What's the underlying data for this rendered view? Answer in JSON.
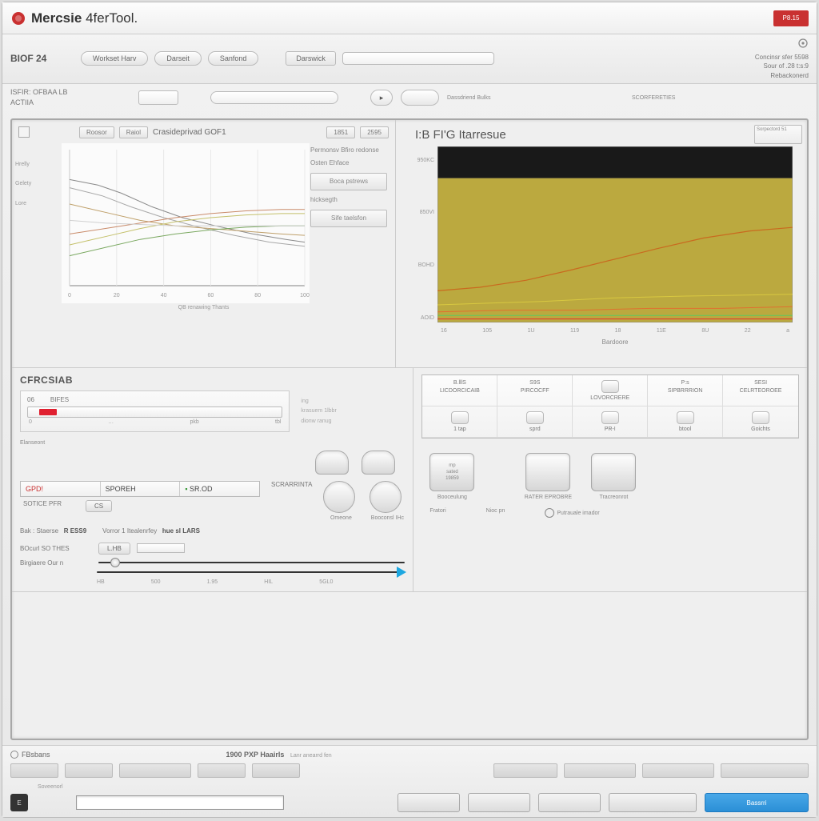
{
  "titlebar": {
    "app_name_bold": "Mercsie",
    "app_name_thin": "4ferTool.",
    "red_button": "P8.15",
    "logo_color": "#c93030"
  },
  "toolbar": {
    "section": "BIOF 24",
    "buttons": [
      "Workset Harv",
      "Darseit",
      "Sanfond"
    ],
    "dropdown": "Darswick",
    "right_lines": [
      "Concinsr sfer 5598",
      "Sour of .28 t:s:9",
      "Rebackonerd"
    ]
  },
  "toolbar2": {
    "left_label_1": "ISFIR: OFBAA LB",
    "left_label_2": "ACTIIA",
    "center_caption": "SCORFERETIES",
    "icon_btn_label": "Dassdriend Bulks"
  },
  "left_chart": {
    "type": "line",
    "header_btns": [
      "Roosor",
      "Raiol"
    ],
    "header_title": "Crasideprivad GOF1",
    "header_right": [
      "1851",
      "2595"
    ],
    "y_labels": [
      "Hrelly",
      "Gelety",
      "Lore"
    ],
    "x_ticks": [
      "0",
      "20",
      "40",
      "60",
      "80",
      "100"
    ],
    "xlim": [
      0,
      100
    ],
    "ylim": [
      0,
      100
    ],
    "background": "#fbfbfb",
    "axis_color": "#999999",
    "grid_color": "#e8e8e8",
    "caption": "QB renawing Thants",
    "legend": {
      "items": [
        "Permonsv Bfiro redonse",
        "Osten Ehface",
        "Boca pstrews",
        "hicksegth"
      ],
      "button": "Sife taelsfon"
    },
    "series": [
      {
        "color": "#8a8a8a",
        "width": 1,
        "points": [
          [
            0,
            78
          ],
          [
            12,
            74
          ],
          [
            22,
            68
          ],
          [
            35,
            58
          ],
          [
            48,
            50
          ],
          [
            62,
            44
          ],
          [
            78,
            38
          ],
          [
            92,
            34
          ],
          [
            100,
            32
          ]
        ]
      },
      {
        "color": "#a8a8a8",
        "width": 1,
        "points": [
          [
            0,
            72
          ],
          [
            14,
            66
          ],
          [
            26,
            58
          ],
          [
            40,
            50
          ],
          [
            55,
            43
          ],
          [
            70,
            37
          ],
          [
            85,
            32
          ],
          [
            100,
            29
          ]
        ]
      },
      {
        "color": "#bfa06a",
        "width": 1,
        "points": [
          [
            0,
            60
          ],
          [
            15,
            54
          ],
          [
            30,
            48
          ],
          [
            45,
            44
          ],
          [
            60,
            42
          ],
          [
            75,
            40
          ],
          [
            90,
            38
          ],
          [
            100,
            37
          ]
        ]
      },
      {
        "color": "#c98b6a",
        "width": 1,
        "points": [
          [
            0,
            38
          ],
          [
            15,
            42
          ],
          [
            30,
            46
          ],
          [
            45,
            50
          ],
          [
            60,
            53
          ],
          [
            75,
            55
          ],
          [
            90,
            56
          ],
          [
            100,
            56
          ]
        ]
      },
      {
        "color": "#c4c06a",
        "width": 1,
        "points": [
          [
            0,
            30
          ],
          [
            15,
            36
          ],
          [
            30,
            42
          ],
          [
            45,
            47
          ],
          [
            60,
            50
          ],
          [
            75,
            52
          ],
          [
            90,
            53
          ],
          [
            100,
            53
          ]
        ]
      },
      {
        "color": "#7aa860",
        "width": 1,
        "points": [
          [
            0,
            22
          ],
          [
            15,
            28
          ],
          [
            30,
            34
          ],
          [
            45,
            38
          ],
          [
            60,
            41
          ],
          [
            75,
            43
          ],
          [
            90,
            44
          ],
          [
            100,
            44
          ]
        ]
      },
      {
        "color": "#d0d0d0",
        "width": 1,
        "points": [
          [
            0,
            48
          ],
          [
            15,
            46
          ],
          [
            30,
            45
          ],
          [
            45,
            44
          ],
          [
            60,
            44
          ],
          [
            75,
            44
          ],
          [
            90,
            44
          ],
          [
            100,
            44
          ]
        ]
      }
    ]
  },
  "right_chart": {
    "type": "area",
    "title": "I:B FI'G Itarresue",
    "corner_box": "Sorpectord 51",
    "y_labels": [
      "950KC",
      "850VI",
      "BOHD",
      "AOID"
    ],
    "x_ticks": [
      "16",
      "105",
      "1U",
      "119",
      "18",
      "11E",
      "8U",
      "22",
      "a"
    ],
    "x_label": "Bardoore",
    "background_top": "#191919",
    "area_color": "#bba93f",
    "ylim": [
      0,
      100
    ],
    "top_bar_height": 18,
    "series": [
      {
        "color": "#c96a1f",
        "width": 1.2,
        "points": [
          [
            0,
            18
          ],
          [
            12,
            20
          ],
          [
            25,
            24
          ],
          [
            38,
            30
          ],
          [
            50,
            36
          ],
          [
            62,
            42
          ],
          [
            75,
            48
          ],
          [
            88,
            52
          ],
          [
            100,
            54
          ]
        ]
      },
      {
        "color": "#d8c840",
        "width": 1,
        "points": [
          [
            0,
            10
          ],
          [
            15,
            11
          ],
          [
            30,
            12
          ],
          [
            50,
            14
          ],
          [
            70,
            15
          ],
          [
            100,
            16
          ]
        ]
      },
      {
        "color": "#e07030",
        "width": 1,
        "points": [
          [
            0,
            6
          ],
          [
            20,
            7
          ],
          [
            40,
            7
          ],
          [
            60,
            8
          ],
          [
            80,
            8
          ],
          [
            100,
            9
          ]
        ]
      },
      {
        "color": "#60c860",
        "width": 1,
        "points": [
          [
            0,
            4
          ],
          [
            100,
            4
          ]
        ]
      },
      {
        "color": "#e03030",
        "width": 1,
        "points": [
          [
            0,
            2
          ],
          [
            100,
            2
          ]
        ]
      }
    ]
  },
  "sensing": {
    "title": "CFRCSIAB",
    "prog_labels": [
      "06",
      "BIFES"
    ],
    "prog_value_pct": 8,
    "prog_color": "#e02030",
    "prog_ticks": [
      "0",
      "…",
      "pkb",
      "tbl"
    ],
    "side_text": [
      "ing",
      "krasuem 1lbbr",
      "dionw ranug"
    ],
    "footer_label": "Elanseont"
  },
  "stats": {
    "cells": [
      "GPD!",
      "SPOREH",
      "SR.OD"
    ],
    "second_header": "SCRARRINTA",
    "row2": [
      "SOTICE PFR",
      "CS"
    ],
    "knob_labels": [
      "Omeone",
      "Booconsl IHc"
    ],
    "pair": [
      {
        "k": "Bak : Staerse",
        "v": "R ESS9"
      },
      {
        "k": "Vorror 1   Itealenrfey",
        "v": "hue sl LARS"
      }
    ]
  },
  "sliders": {
    "rows": [
      {
        "label": "BOcurl SO THES",
        "tag": "L.HB",
        "handle_pct": 4,
        "field": true
      },
      {
        "label": "Birgiaere Our  n",
        "tag": "",
        "handle_pct": 96,
        "arrow": true
      }
    ],
    "ticks": [
      "HB",
      "500",
      "1.95",
      "HIL",
      "5GL0"
    ]
  },
  "icon_grid": {
    "headers": [
      "B.lllS",
      "S9S",
      "1B",
      "P:s",
      "SESI"
    ],
    "sub": [
      "LICDORCICAIB",
      "PIRCOCFF",
      "LOVORCRERE",
      "SIPBRRRION",
      "CELRTEOROEE"
    ],
    "row2_labels": [
      "1 tap",
      "sprd",
      "PR-I",
      "btool",
      "Goichts"
    ]
  },
  "big_tiles": [
    {
      "inner": [
        "mp",
        "sated",
        "19859"
      ],
      "label": "Booceulung"
    },
    {
      "inner": [
        "",
        "",
        ""
      ],
      "label": "RATER EPROBRE"
    },
    {
      "inner": [
        "",
        "",
        ""
      ],
      "label": "Tracreonrot"
    }
  ],
  "tile_footer_labels": [
    "Fratori",
    "Nioc pn",
    "Putrauale imador"
  ],
  "footer": {
    "left_title": "FBsbans",
    "right_title": "1900 PXP Haairls",
    "right_sub": "Lanr anearrd fen",
    "sublabel": "Soveenorl",
    "small_btn_label": "E",
    "primary_btn": "Bassrri",
    "colors": {
      "primary": "#2b8fd6"
    }
  }
}
